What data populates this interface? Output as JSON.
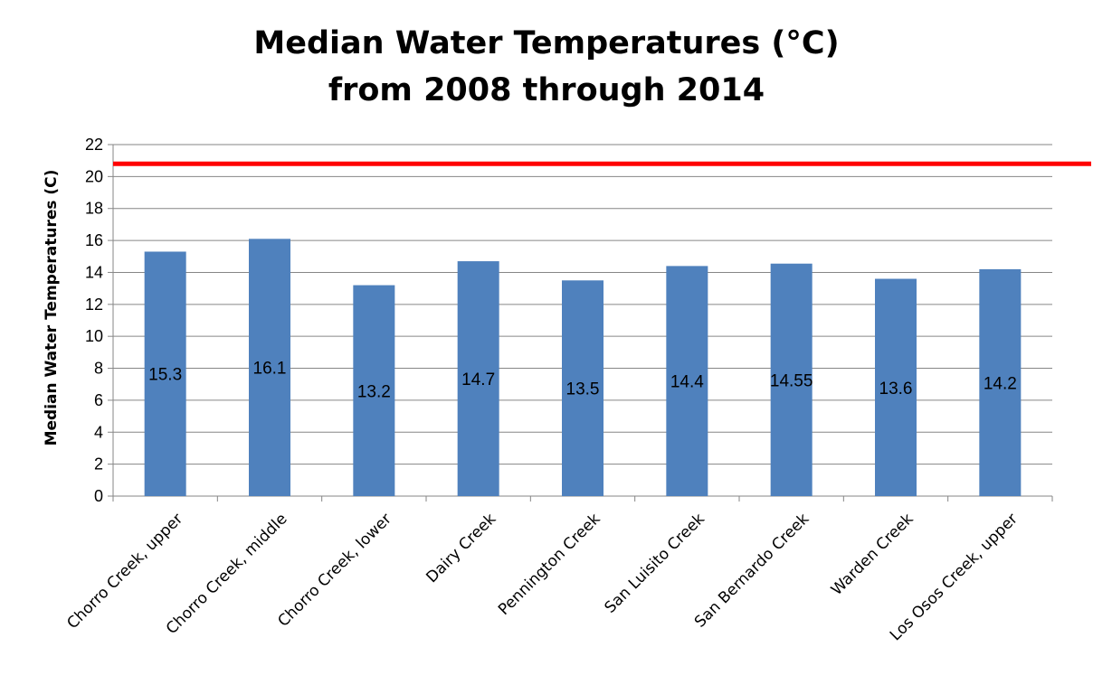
{
  "chart_data": {
    "type": "bar",
    "title_lines": [
      "Median Water Temperatures (°C)",
      "from 2008 through 2014"
    ],
    "xlabel": "",
    "ylabel": "Median Water Temperatures (C)",
    "ylim": [
      0,
      22
    ],
    "ytick_step": 2,
    "grid": true,
    "legend": "none",
    "categories": [
      "Chorro Creek, upper",
      "Chorro Creek, middle",
      "Chorro Creek, lower",
      "Dairy Creek",
      "Pennington Creek",
      "San Luisito Creek",
      "San Bernardo Creek",
      "Warden Creek",
      "Los Osos Creek, upper"
    ],
    "values": [
      15.3,
      16.1,
      13.2,
      14.7,
      13.5,
      14.4,
      14.55,
      13.6,
      14.2
    ],
    "data_labels": [
      "15.3",
      "16.1",
      "13.2",
      "14.7",
      "13.5",
      "14.4",
      "14.55",
      "13.6",
      "14.2"
    ],
    "threshold_value": 20.8,
    "colors": {
      "bar": "#4f81bd",
      "threshold": "#ff0000",
      "grid": "#868686"
    }
  }
}
